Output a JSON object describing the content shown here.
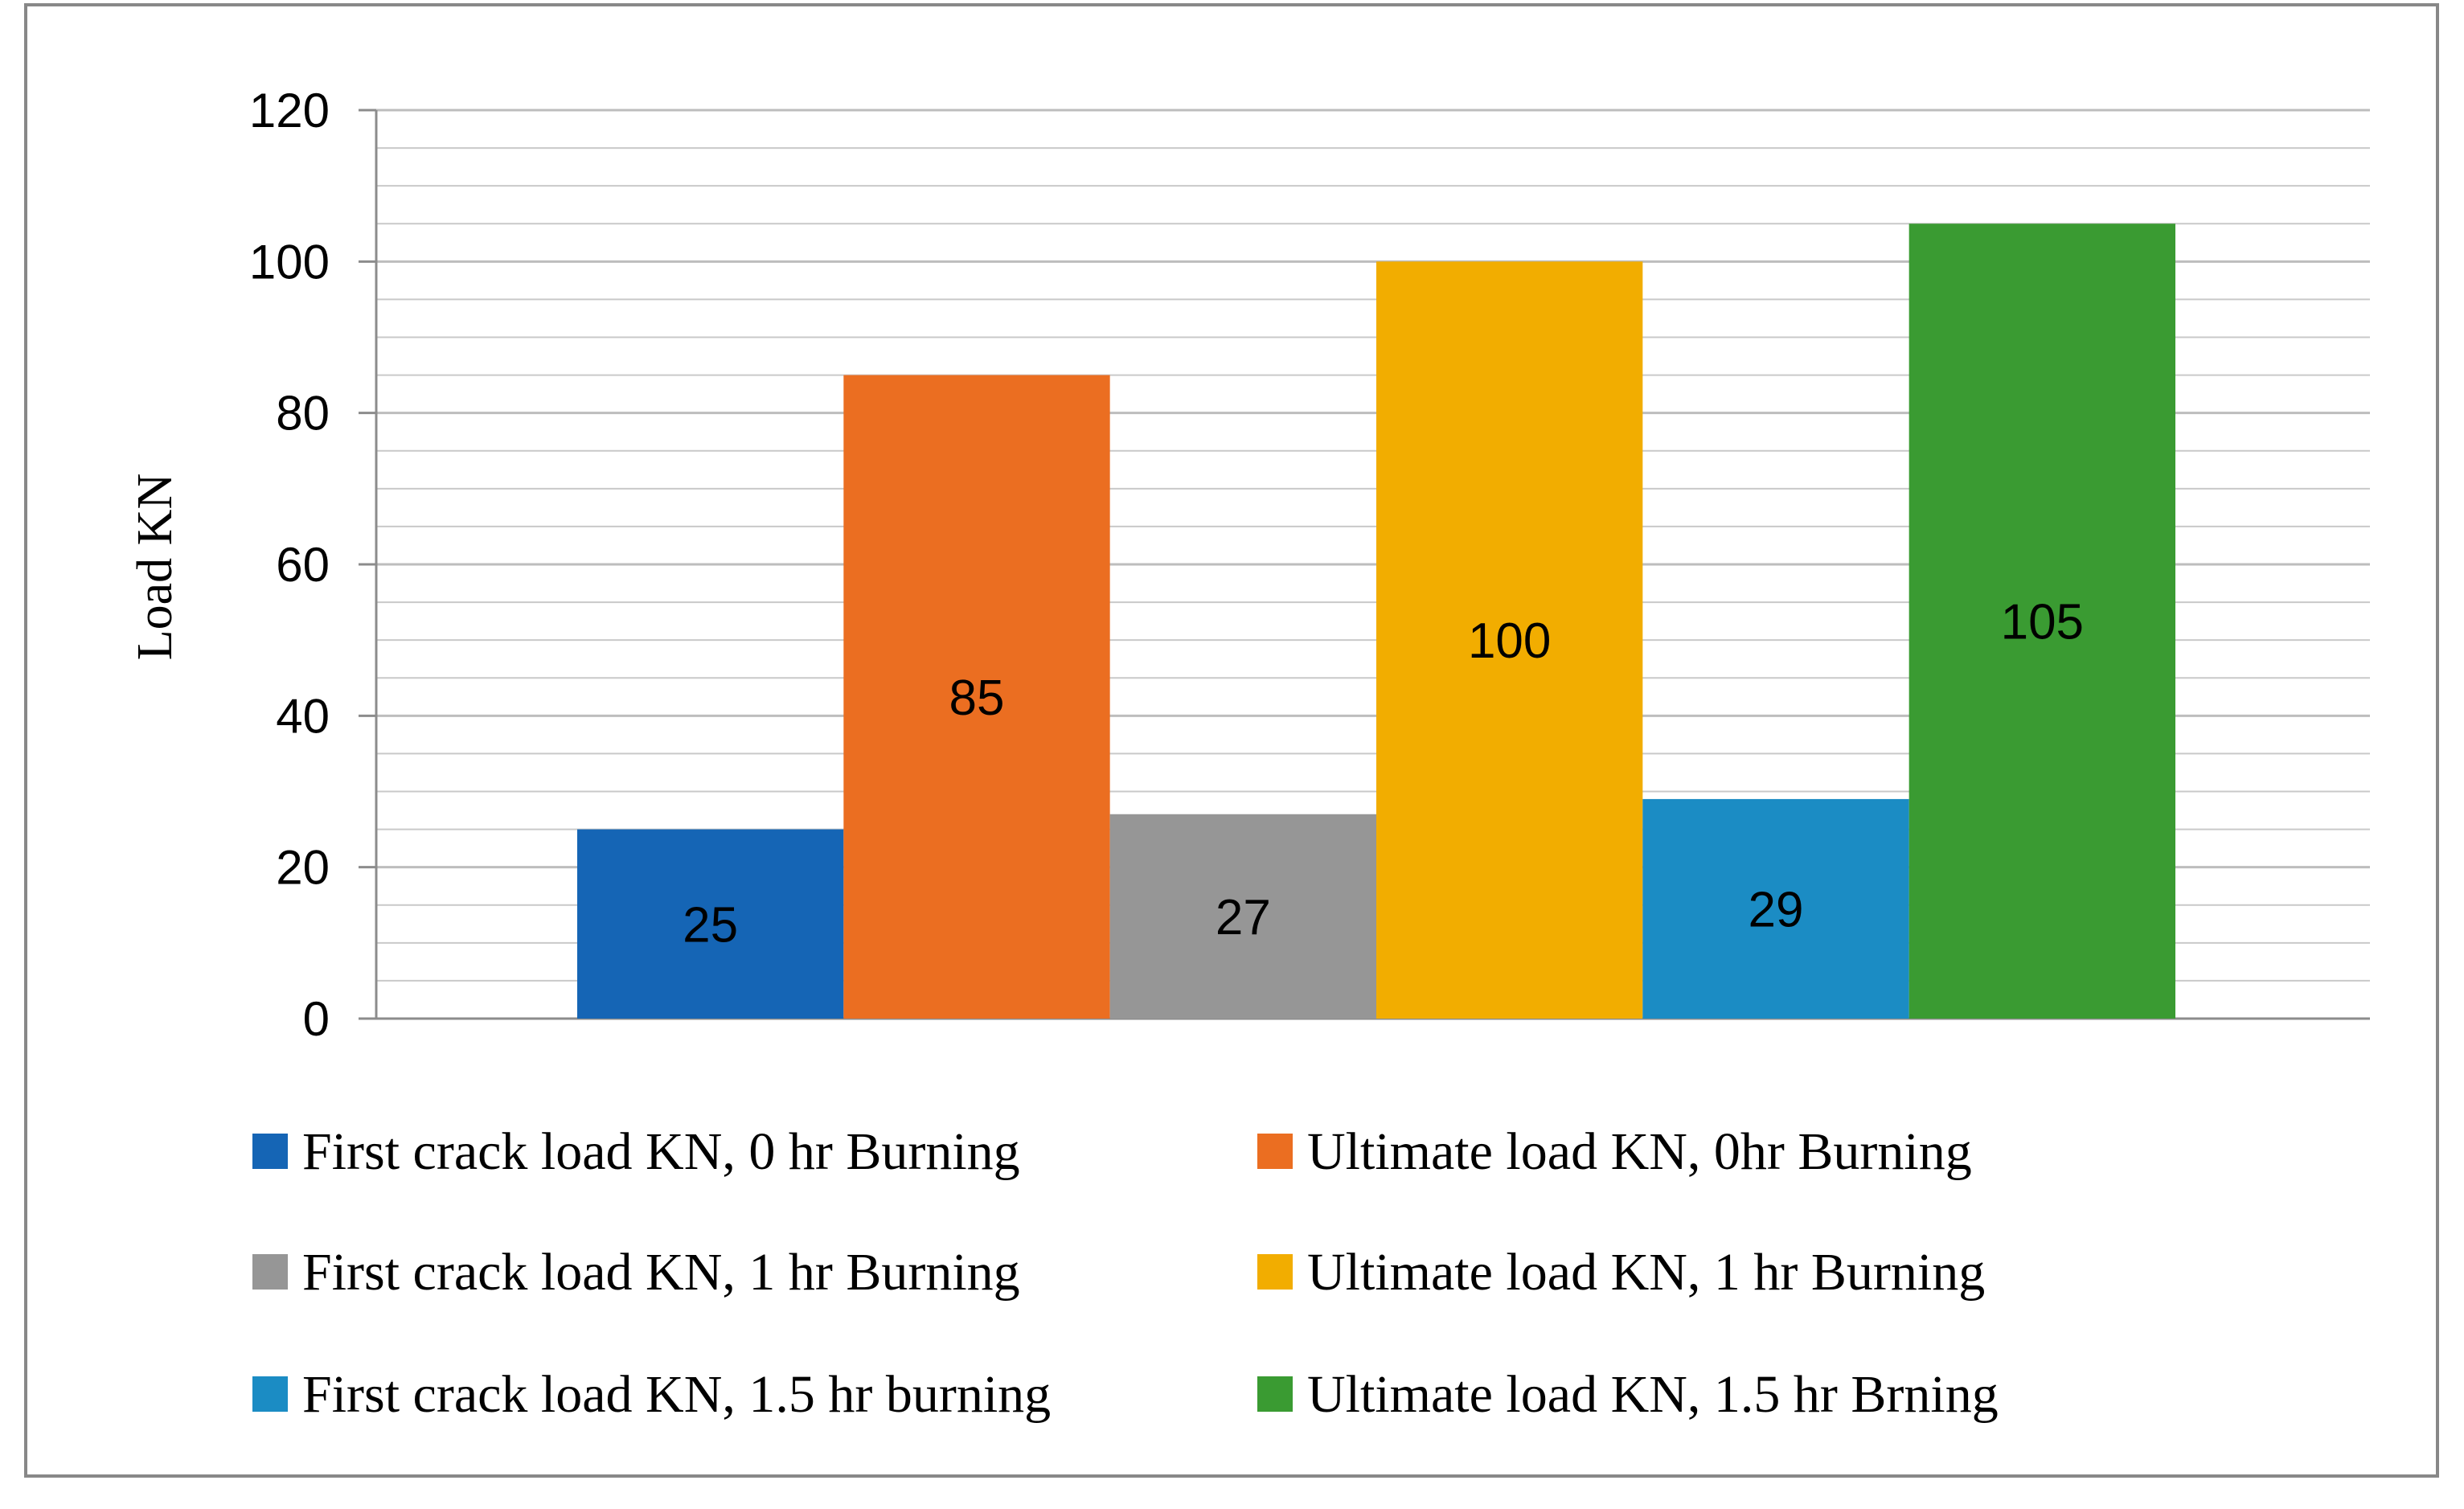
{
  "chart_data": {
    "type": "bar",
    "title": "",
    "ylabel": "Load KN",
    "xlabel": "",
    "ylim": [
      0,
      120
    ],
    "major_ticks": [
      0,
      20,
      40,
      60,
      80,
      100,
      120
    ],
    "minor_gridline_step": 5,
    "grid": true,
    "legend_position": "bottom",
    "series": [
      {
        "name": "First crack load KN, 0 hr Burning",
        "values": [
          25
        ],
        "color": "#1565b5"
      },
      {
        "name": "Ultimate load KN, 0hr Burning",
        "values": [
          85
        ],
        "color": "#eb6e21"
      },
      {
        "name": "First crack load KN, 1 hr Burning",
        "values": [
          27
        ],
        "color": "#969696"
      },
      {
        "name": "Ultimate load KN, 1 hr Burning",
        "values": [
          100
        ],
        "color": "#f2ad00"
      },
      {
        "name": "First crack load KN, 1.5 hr burning",
        "values": [
          29
        ],
        "color": "#1b8cc4"
      },
      {
        "name": "Ultimate load KN, 1.5 hr Brning",
        "values": [
          105
        ],
        "color": "#3a9b32"
      }
    ]
  }
}
